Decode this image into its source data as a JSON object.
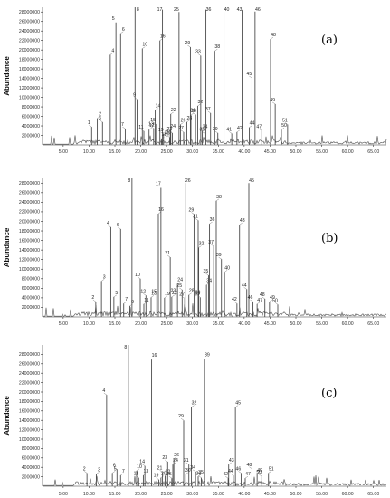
{
  "chart_data": [
    {
      "type": "line",
      "panel_label": "(a)",
      "ylabel": "Abundance",
      "xlim": [
        1.0,
        67.5
      ],
      "ylim": [
        0,
        29000000
      ],
      "x_ticks": [
        "5.00",
        "10.00",
        "15.00",
        "20.00",
        "25.00",
        "30.00",
        "35.00",
        "40.00",
        "45.00",
        "50.00",
        "55.00",
        "60.00",
        "65.00"
      ],
      "y_ticks": [
        "2000000",
        "4000000",
        "6000000",
        "8000000",
        "10000000",
        "12000000",
        "14000000",
        "16000000",
        "18000000",
        "20000000",
        "22000000",
        "24000000",
        "26000000",
        "28000000"
      ],
      "peaks": [
        {
          "label": "1",
          "x": 10.5,
          "y": 3800000
        },
        {
          "label": "2",
          "x": 11.6,
          "y": 5600000
        },
        {
          "label": "3",
          "x": 12.6,
          "y": 4800000
        },
        {
          "label": "4",
          "x": 14.1,
          "y": 19000000
        },
        {
          "label": "5",
          "x": 15.2,
          "y": 25800000
        },
        {
          "label": "6",
          "x": 16.1,
          "y": 23500000
        },
        {
          "label": "7",
          "x": 17.0,
          "y": 3400000
        },
        {
          "label": "8",
          "x": 18.9,
          "y": 29000000
        },
        {
          "label": "9",
          "x": 19.3,
          "y": 9600000
        },
        {
          "label": "10",
          "x": 20.3,
          "y": 20300000
        },
        {
          "label": "11",
          "x": 20.6,
          "y": 2900000
        },
        {
          "label": "12",
          "x": 21.6,
          "y": 3200000
        },
        {
          "label": "13",
          "x": 22.5,
          "y": 3500000
        },
        {
          "label": "14",
          "x": 22.8,
          "y": 7300000
        },
        {
          "label": "15",
          "x": 22.9,
          "y": 4400000
        },
        {
          "label": "16",
          "x": 23.7,
          "y": 22000000
        },
        {
          "label": "17",
          "x": 24.2,
          "y": 28500000
        },
        {
          "label": "18",
          "x": 24.0,
          "y": 1300000
        },
        {
          "label": "19",
          "x": 24.4,
          "y": 2300000
        },
        {
          "label": "20",
          "x": 24.9,
          "y": 1700000
        },
        {
          "label": "21",
          "x": 25.6,
          "y": 1600000
        },
        {
          "label": "22",
          "x": 25.8,
          "y": 6500000
        },
        {
          "label": "23",
          "x": 26.1,
          "y": 2500000
        },
        {
          "label": "24",
          "x": 25.7,
          "y": 3100000
        },
        {
          "label": "25",
          "x": 27.4,
          "y": 28000000
        },
        {
          "label": "26",
          "x": 27.7,
          "y": 4300000
        },
        {
          "label": "27",
          "x": 28.3,
          "y": 2700000
        },
        {
          "label": "28",
          "x": 28.9,
          "y": 4800000
        },
        {
          "label": "29",
          "x": 29.6,
          "y": 20600000
        },
        {
          "label": "30",
          "x": 29.7,
          "y": 6300000
        },
        {
          "label": "31",
          "x": 30.6,
          "y": 6400000
        },
        {
          "label": "32",
          "x": 31.0,
          "y": 8200000
        },
        {
          "label": "33",
          "x": 31.6,
          "y": 18800000
        },
        {
          "label": "34",
          "x": 31.9,
          "y": 3000000
        },
        {
          "label": "35",
          "x": 32.4,
          "y": 2400000
        },
        {
          "label": "36",
          "x": 32.6,
          "y": 28500000
        },
        {
          "label": "37",
          "x": 33.5,
          "y": 6700000
        },
        {
          "label": "38",
          "x": 34.3,
          "y": 19800000
        },
        {
          "label": "39",
          "x": 34.9,
          "y": 2500000
        },
        {
          "label": "40",
          "x": 36.1,
          "y": 28000000
        },
        {
          "label": "41",
          "x": 37.6,
          "y": 2400000
        },
        {
          "label": "42",
          "x": 38.6,
          "y": 2700000
        },
        {
          "label": "43",
          "x": 39.6,
          "y": 28400000
        },
        {
          "label": "44",
          "x": 41.0,
          "y": 3700000
        },
        {
          "label": "45",
          "x": 41.5,
          "y": 14100000
        },
        {
          "label": "46",
          "x": 42.1,
          "y": 28100000
        },
        {
          "label": "47",
          "x": 43.4,
          "y": 3000000
        },
        {
          "label": "48",
          "x": 45.1,
          "y": 22300000
        },
        {
          "label": "49",
          "x": 46.0,
          "y": 8600000
        },
        {
          "label": "50",
          "x": 47.2,
          "y": 3200000
        },
        {
          "label": "51",
          "x": 48.4,
          "y": 4300000
        }
      ]
    },
    {
      "type": "line",
      "panel_label": "(b)",
      "ylabel": "Abundance",
      "xlim": [
        1.0,
        67.5
      ],
      "ylim": [
        0,
        29000000
      ],
      "x_ticks": [
        "5.00",
        "10.00",
        "15.00",
        "20.00",
        "25.00",
        "30.00",
        "35.00",
        "40.00",
        "45.00",
        "50.00",
        "55.00",
        "60.00",
        "65.00"
      ],
      "y_ticks": [
        "2000000",
        "4000000",
        "6000000",
        "8000000",
        "10000000",
        "12000000",
        "14000000",
        "16000000",
        "18000000",
        "20000000",
        "22000000",
        "24000000",
        "26000000",
        "28000000"
      ],
      "peaks": [
        {
          "label": "2",
          "x": 11.3,
          "y": 3200000
        },
        {
          "label": "3",
          "x": 12.4,
          "y": 7500000
        },
        {
          "label": "4",
          "x": 14.2,
          "y": 18800000
        },
        {
          "label": "5",
          "x": 14.8,
          "y": 4200000
        },
        {
          "label": "6",
          "x": 16.1,
          "y": 18400000
        },
        {
          "label": "7",
          "x": 16.7,
          "y": 2800000
        },
        {
          "label": "8",
          "x": 18.3,
          "y": 29000000
        },
        {
          "label": "9",
          "x": 17.9,
          "y": 2300000
        },
        {
          "label": "10",
          "x": 19.9,
          "y": 8000000
        },
        {
          "label": "11",
          "x": 20.6,
          "y": 2700000
        },
        {
          "label": "12",
          "x": 21.0,
          "y": 4500000
        },
        {
          "label": "13",
          "x": 22.0,
          "y": 4100000
        },
        {
          "label": "15",
          "x": 23.1,
          "y": 4500000
        },
        {
          "label": "16",
          "x": 23.4,
          "y": 21600000
        },
        {
          "label": "17",
          "x": 23.9,
          "y": 27000000
        },
        {
          "label": "19",
          "x": 24.6,
          "y": 4000000
        },
        {
          "label": "21",
          "x": 25.7,
          "y": 12500000
        },
        {
          "label": "22",
          "x": 26.0,
          "y": 4200000
        },
        {
          "label": "23",
          "x": 26.8,
          "y": 4600000
        },
        {
          "label": "24",
          "x": 27.1,
          "y": 6900000
        },
        {
          "label": "25",
          "x": 28.0,
          "y": 5700000
        },
        {
          "label": "26",
          "x": 28.6,
          "y": 28000000
        },
        {
          "label": "27",
          "x": 28.5,
          "y": 3900000
        },
        {
          "label": "28",
          "x": 29.3,
          "y": 4600000
        },
        {
          "label": "29",
          "x": 30.3,
          "y": 21500000
        },
        {
          "label": "30",
          "x": 30.5,
          "y": 4300000
        },
        {
          "label": "31",
          "x": 31.1,
          "y": 20200000
        },
        {
          "label": "32",
          "x": 31.2,
          "y": 14500000
        },
        {
          "label": "33",
          "x": 31.5,
          "y": 4100000
        },
        {
          "label": "34",
          "x": 32.7,
          "y": 6700000
        },
        {
          "label": "35",
          "x": 33.1,
          "y": 8700000
        },
        {
          "label": "36",
          "x": 33.3,
          "y": 19500000
        },
        {
          "label": "37",
          "x": 34.1,
          "y": 14800000
        },
        {
          "label": "38",
          "x": 34.6,
          "y": 24300000
        },
        {
          "label": "39",
          "x": 35.6,
          "y": 12100000
        },
        {
          "label": "40",
          "x": 36.2,
          "y": 9400000
        },
        {
          "label": "42",
          "x": 38.6,
          "y": 2800000
        },
        {
          "label": "43",
          "x": 39.1,
          "y": 19300000
        },
        {
          "label": "44",
          "x": 40.5,
          "y": 5800000
        },
        {
          "label": "45",
          "x": 40.9,
          "y": 28000000
        },
        {
          "label": "46",
          "x": 41.7,
          "y": 3200000
        },
        {
          "label": "47",
          "x": 42.5,
          "y": 2700000
        },
        {
          "label": "48",
          "x": 44.0,
          "y": 3800000
        },
        {
          "label": "49",
          "x": 44.9,
          "y": 3200000
        },
        {
          "label": "50",
          "x": 46.5,
          "y": 2600000
        }
      ]
    },
    {
      "type": "line",
      "panel_label": "(c)",
      "ylabel": "Abundance",
      "xlim": [
        1.0,
        67.5
      ],
      "ylim": [
        0,
        30000000
      ],
      "x_ticks": [
        "5.00",
        "10.00",
        "15.00",
        "20.00",
        "25.00",
        "30.00",
        "35.00",
        "40.00",
        "45.00",
        "50.00",
        "55.00",
        "60.00",
        "65.00"
      ],
      "y_ticks": [
        "2000000",
        "4000000",
        "6000000",
        "8000000",
        "10000000",
        "12000000",
        "14000000",
        "16000000",
        "18000000",
        "20000000",
        "22000000",
        "24000000",
        "26000000",
        "28000000"
      ],
      "peaks": [
        {
          "label": "2",
          "x": 9.6,
          "y": 2800000
        },
        {
          "label": "3",
          "x": 11.4,
          "y": 2600000
        },
        {
          "label": "4",
          "x": 13.4,
          "y": 19400000
        },
        {
          "label": "5",
          "x": 14.5,
          "y": 2800000
        },
        {
          "label": "6",
          "x": 15.4,
          "y": 3600000
        },
        {
          "label": "7",
          "x": 16.1,
          "y": 2300000
        },
        {
          "label": "8",
          "x": 17.6,
          "y": 30000000
        },
        {
          "label": "10",
          "x": 19.2,
          "y": 3300000
        },
        {
          "label": "11",
          "x": 19.6,
          "y": 1800000
        },
        {
          "label": "13",
          "x": 20.5,
          "y": 2300000
        },
        {
          "label": "14",
          "x": 20.8,
          "y": 4300000
        },
        {
          "label": "16",
          "x": 22.1,
          "y": 26900000
        },
        {
          "label": "19",
          "x": 23.5,
          "y": 1400000
        },
        {
          "label": "20",
          "x": 23.9,
          "y": 1800000
        },
        {
          "label": "21",
          "x": 24.2,
          "y": 3000000
        },
        {
          "label": "22",
          "x": 24.7,
          "y": 2200000
        },
        {
          "label": "23",
          "x": 25.2,
          "y": 5200000
        },
        {
          "label": "24",
          "x": 26.2,
          "y": 4600000
        },
        {
          "label": "25",
          "x": 26.0,
          "y": 1700000
        },
        {
          "label": "26",
          "x": 26.4,
          "y": 5800000
        },
        {
          "label": "29",
          "x": 28.3,
          "y": 14000000
        },
        {
          "label": "30",
          "x": 28.6,
          "y": 2500000
        },
        {
          "label": "31",
          "x": 29.3,
          "y": 4600000
        },
        {
          "label": "32",
          "x": 29.8,
          "y": 16800000
        },
        {
          "label": "34",
          "x": 30.6,
          "y": 3100000
        },
        {
          "label": "35",
          "x": 31.1,
          "y": 2100000
        },
        {
          "label": "36",
          "x": 31.7,
          "y": 1800000
        },
        {
          "label": "39",
          "x": 32.3,
          "y": 27000000
        },
        {
          "label": "42",
          "x": 36.9,
          "y": 1700000
        },
        {
          "label": "43",
          "x": 37.0,
          "y": 4600000
        },
        {
          "label": "44",
          "x": 37.9,
          "y": 2300000
        },
        {
          "label": "45",
          "x": 38.3,
          "y": 16800000
        },
        {
          "label": "46",
          "x": 39.4,
          "y": 2800000
        },
        {
          "label": "47",
          "x": 40.2,
          "y": 1700000
        },
        {
          "label": "48",
          "x": 41.5,
          "y": 3700000
        },
        {
          "label": "49",
          "x": 42.5,
          "y": 2500000
        },
        {
          "label": "50",
          "x": 43.4,
          "y": 2100000
        },
        {
          "label": "51",
          "x": 44.7,
          "y": 2800000
        }
      ]
    }
  ]
}
